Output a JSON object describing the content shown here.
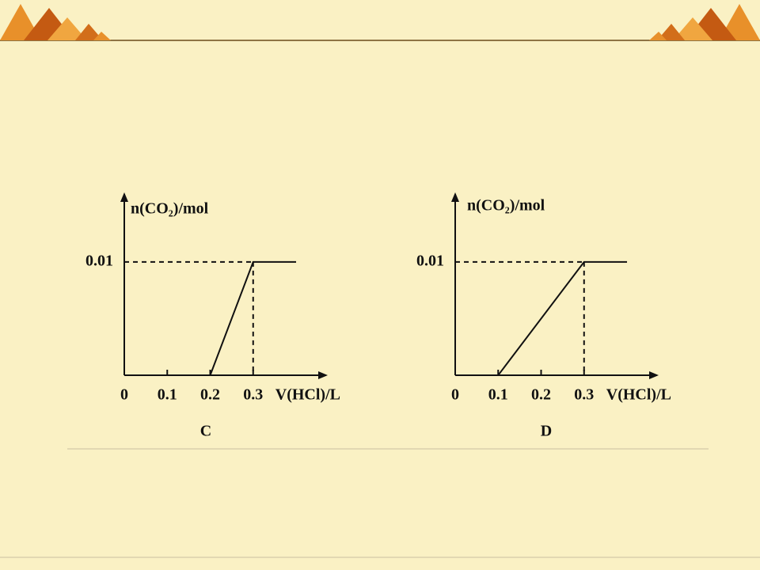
{
  "chart_data": [
    {
      "type": "line",
      "caption": "C",
      "x_label": "V(HCl)/L",
      "y_label": "n(CO₂)/mol",
      "x": [
        0.2,
        0.3,
        0.4
      ],
      "values": [
        0,
        0.01,
        0.01
      ],
      "color": "#111111",
      "xlim": [
        0,
        0.47
      ],
      "ylim": [
        0,
        0.016
      ],
      "xticks": [
        0,
        0.1,
        0.2,
        0.3
      ],
      "yticks": [
        0.01
      ]
    },
    {
      "type": "line",
      "caption": "D",
      "x_label": "V(HCl)/L",
      "y_label": "n(CO₂)/mol",
      "x": [
        0.1,
        0.3,
        0.4
      ],
      "values": [
        0,
        0.01,
        0.01
      ],
      "color": "#111111",
      "xlim": [
        0,
        0.47
      ],
      "ylim": [
        0,
        0.016
      ],
      "xticks": [
        0,
        0.1,
        0.2,
        0.3
      ],
      "yticks": [
        0.01
      ]
    }
  ]
}
